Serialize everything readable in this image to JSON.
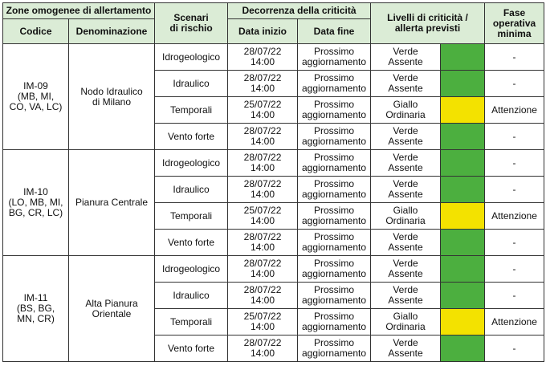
{
  "header": {
    "zone_group": "Zone omogenee di allertamento",
    "codice": "Codice",
    "denominazione": "Denominazione",
    "scenari_l1": "Scenari",
    "scenari_l2": "di rischio",
    "decorrenza": "Decorrenza della criticità",
    "data_inizio": "Data inizio",
    "data_fine": "Data fine",
    "livelli_l1": "Livelli di criticità /",
    "livelli_l2": "allerta previsti",
    "fase_l1": "Fase",
    "fase_l2": "operativa",
    "fase_l3": "minima"
  },
  "colors": {
    "header_bg": "#dbecd6",
    "verde": "#4caf3f",
    "giallo": "#f3e200"
  },
  "zones": [
    {
      "codice_l1": "IM-09",
      "codice_l2": "(MB, MI,",
      "codice_l3": "CO, VA, LC)",
      "den_l1": "Nodo Idraulico",
      "den_l2": "di Milano",
      "rows": [
        {
          "scenario": "Idrogeologico",
          "inizio_l1": "28/07/22",
          "inizio_l2": "14:00",
          "fine_l1": "Prossimo",
          "fine_l2": "aggiornamento",
          "liv_l1": "Verde",
          "liv_l2": "Assente",
          "color": "green",
          "fase": "-"
        },
        {
          "scenario": "Idraulico",
          "inizio_l1": "28/07/22",
          "inizio_l2": "14:00",
          "fine_l1": "Prossimo",
          "fine_l2": "aggiornamento",
          "liv_l1": "Verde",
          "liv_l2": "Assente",
          "color": "green",
          "fase": "-"
        },
        {
          "scenario": "Temporali",
          "inizio_l1": "25/07/22",
          "inizio_l2": "14:00",
          "fine_l1": "Prossimo",
          "fine_l2": "aggiornamento",
          "liv_l1": "Giallo",
          "liv_l2": "Ordinaria",
          "color": "yellow",
          "fase": "Attenzione"
        },
        {
          "scenario": "Vento forte",
          "inizio_l1": "28/07/22",
          "inizio_l2": "14:00",
          "fine_l1": "Prossimo",
          "fine_l2": "aggiornamento",
          "liv_l1": "Verde",
          "liv_l2": "Assente",
          "color": "green",
          "fase": "-"
        }
      ]
    },
    {
      "codice_l1": "IM-10",
      "codice_l2": "(LO, MB, MI,",
      "codice_l3": "BG, CR, LC)",
      "den_l1": "Pianura Centrale",
      "den_l2": "",
      "rows": [
        {
          "scenario": "Idrogeologico",
          "inizio_l1": "28/07/22",
          "inizio_l2": "14:00",
          "fine_l1": "Prossimo",
          "fine_l2": "aggiornamento",
          "liv_l1": "Verde",
          "liv_l2": "Assente",
          "color": "green",
          "fase": "-"
        },
        {
          "scenario": "Idraulico",
          "inizio_l1": "28/07/22",
          "inizio_l2": "14:00",
          "fine_l1": "Prossimo",
          "fine_l2": "aggiornamento",
          "liv_l1": "Verde",
          "liv_l2": "Assente",
          "color": "green",
          "fase": "-"
        },
        {
          "scenario": "Temporali",
          "inizio_l1": "25/07/22",
          "inizio_l2": "14:00",
          "fine_l1": "Prossimo",
          "fine_l2": "aggiornamento",
          "liv_l1": "Giallo",
          "liv_l2": "Ordinaria",
          "color": "yellow",
          "fase": "Attenzione"
        },
        {
          "scenario": "Vento forte",
          "inizio_l1": "28/07/22",
          "inizio_l2": "14:00",
          "fine_l1": "Prossimo",
          "fine_l2": "aggiornamento",
          "liv_l1": "Verde",
          "liv_l2": "Assente",
          "color": "green",
          "fase": "-"
        }
      ]
    },
    {
      "codice_l1": "IM-11",
      "codice_l2": "(BS, BG,",
      "codice_l3": "MN, CR)",
      "den_l1": "Alta Pianura",
      "den_l2": "Orientale",
      "rows": [
        {
          "scenario": "Idrogeologico",
          "inizio_l1": "28/07/22",
          "inizio_l2": "14:00",
          "fine_l1": "Prossimo",
          "fine_l2": "aggiornamento",
          "liv_l1": "Verde",
          "liv_l2": "Assente",
          "color": "green",
          "fase": "-"
        },
        {
          "scenario": "Idraulico",
          "inizio_l1": "28/07/22",
          "inizio_l2": "14:00",
          "fine_l1": "Prossimo",
          "fine_l2": "aggiornamento",
          "liv_l1": "Verde",
          "liv_l2": "Assente",
          "color": "green",
          "fase": "-"
        },
        {
          "scenario": "Temporali",
          "inizio_l1": "25/07/22",
          "inizio_l2": "14:00",
          "fine_l1": "Prossimo",
          "fine_l2": "aggiornamento",
          "liv_l1": "Giallo",
          "liv_l2": "Ordinaria",
          "color": "yellow",
          "fase": "Attenzione"
        },
        {
          "scenario": "Vento forte",
          "inizio_l1": "28/07/22",
          "inizio_l2": "14:00",
          "fine_l1": "Prossimo",
          "fine_l2": "aggiornamento",
          "liv_l1": "Verde",
          "liv_l2": "Assente",
          "color": "green",
          "fase": "-"
        }
      ]
    }
  ]
}
